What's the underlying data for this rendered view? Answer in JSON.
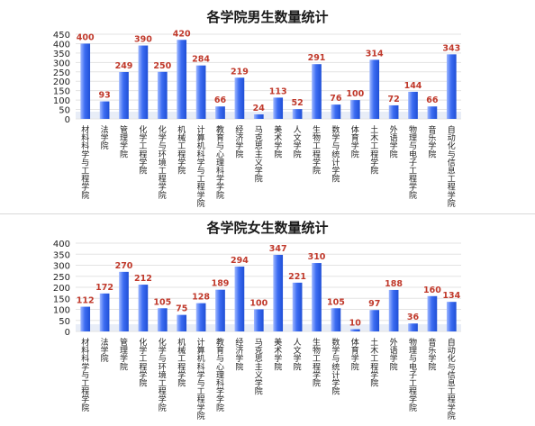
{
  "chart_data": [
    {
      "type": "bar",
      "title": "各学院男生数量统计",
      "categories": [
        "材料科学与工程学院",
        "法学院",
        "管理学院",
        "化学工程学院",
        "化学与环境工程学院",
        "机械工程学院",
        "计算机科学与工程学院",
        "教育与心理科学学院",
        "经济学院",
        "马克思主义学院",
        "美术学院",
        "人文学院",
        "生物工程学院",
        "数学与统计学院",
        "体育学院",
        "土木工程学院",
        "外语学院",
        "物理与电子工程学院",
        "音乐学院",
        "自动化与信息工程学院"
      ],
      "values": [
        400,
        93,
        249,
        390,
        250,
        420,
        284,
        66,
        219,
        24,
        113,
        52,
        291,
        76,
        100,
        314,
        72,
        144,
        66,
        343
      ],
      "yticks": [
        0,
        50,
        100,
        150,
        200,
        250,
        300,
        350,
        400,
        450
      ],
      "ylim": [
        0,
        450
      ],
      "xlabel": "",
      "ylabel": "",
      "grid": true,
      "bar_color": "#3d6df2"
    },
    {
      "type": "bar",
      "title": "各学院女生数量统计",
      "categories": [
        "材料科学与工程学院",
        "法学院",
        "管理学院",
        "化学工程学院",
        "化学与环境工程学院",
        "机械工程学院",
        "计算机科学与工程学院",
        "教育与心理科学学院",
        "经济学院",
        "马克思主义学院",
        "美术学院",
        "人文学院",
        "生物工程学院",
        "数学与统计学院",
        "体育学院",
        "土木工程学院",
        "外语学院",
        "物理与电子工程学院",
        "音乐学院",
        "自动化与信息工程学院"
      ],
      "values": [
        112,
        172,
        270,
        212,
        105,
        75,
        128,
        189,
        294,
        100,
        347,
        221,
        310,
        105,
        10,
        97,
        188,
        36,
        160,
        134
      ],
      "yticks": [
        0,
        50,
        100,
        150,
        200,
        250,
        300,
        350,
        400
      ],
      "ylim": [
        0,
        400
      ],
      "xlabel": "",
      "ylabel": "",
      "grid": true,
      "bar_color": "#3d6df2"
    }
  ]
}
